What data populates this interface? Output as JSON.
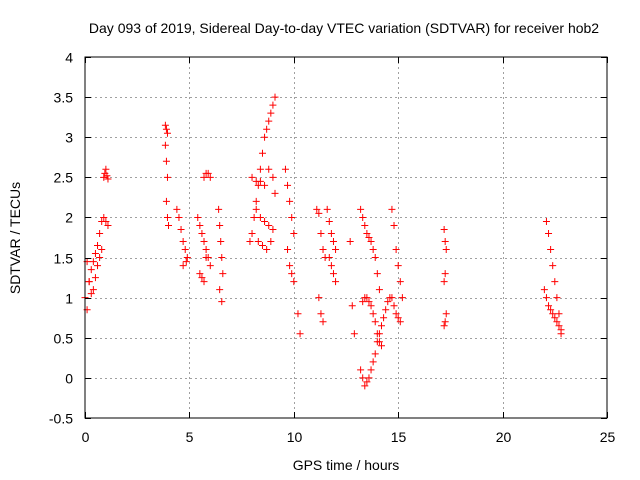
{
  "chart_data": {
    "type": "scatter",
    "title": "Day 093 of 2019, Sidereal Day-to-day VTEC variation (SDTVAR) for receiver hob2",
    "xlabel": "GPS time / hours",
    "ylabel": "SDTVAR / TECUs",
    "xlim": [
      0,
      25
    ],
    "ylim": [
      -0.5,
      4
    ],
    "xticks": [
      0,
      5,
      10,
      15,
      20,
      25
    ],
    "xtick_labels": [
      "0",
      "5",
      "10",
      "15",
      "20",
      "25"
    ],
    "yticks": [
      -0.5,
      0,
      0.5,
      1,
      1.5,
      2,
      2.5,
      3,
      3.5,
      4
    ],
    "ytick_labels": [
      "-0.5",
      "0",
      "0.5",
      "1",
      "1.5",
      "2",
      "2.5",
      "3",
      "3.5",
      "4"
    ],
    "grid": true,
    "marker": "+",
    "color": "#ff0000",
    "segments": [
      {
        "name": "s1",
        "x": [
          0.0,
          0.1,
          0.2,
          0.3,
          0.4,
          0.5,
          0.6,
          0.7,
          0.8,
          0.9,
          1.0,
          1.1
        ],
        "y": [
          1.0,
          0.85,
          1.2,
          1.35,
          1.45,
          1.55,
          1.65,
          1.8,
          1.95,
          2.0,
          1.95,
          1.9
        ]
      },
      {
        "name": "s2",
        "x": [
          0.1,
          0.2,
          0.3,
          0.4,
          0.5,
          0.6,
          0.7,
          0.8
        ],
        "y": [
          1.45,
          1.2,
          1.05,
          1.1,
          1.25,
          1.4,
          1.5,
          1.6
        ]
      },
      {
        "name": "s3",
        "x": [
          0.9,
          0.95,
          1.0,
          1.05,
          1.1
        ],
        "y": [
          2.5,
          2.55,
          2.6,
          2.52,
          2.48
        ]
      },
      {
        "name": "s4",
        "x": [
          3.85,
          3.9,
          3.95,
          3.85,
          3.9,
          3.95,
          3.9,
          3.95,
          4.0
        ],
        "y": [
          3.15,
          3.1,
          3.05,
          2.9,
          2.7,
          2.5,
          2.2,
          2.0,
          1.9
        ]
      },
      {
        "name": "s5",
        "x": [
          4.4,
          4.5,
          4.6,
          4.7,
          4.8,
          4.9,
          4.7,
          4.85
        ],
        "y": [
          2.1,
          2.0,
          1.85,
          1.7,
          1.6,
          1.5,
          1.4,
          1.45
        ]
      },
      {
        "name": "s6",
        "x": [
          5.4,
          5.5,
          5.6,
          5.7,
          5.8,
          5.9,
          6.0,
          5.5,
          5.6,
          5.7,
          5.8
        ],
        "y": [
          2.0,
          1.9,
          1.8,
          1.7,
          1.6,
          1.5,
          1.4,
          1.3,
          1.25,
          1.2,
          1.5
        ]
      },
      {
        "name": "s7",
        "x": [
          5.7,
          5.8,
          5.9,
          6.0
        ],
        "y": [
          2.5,
          2.55,
          2.55,
          2.5
        ]
      },
      {
        "name": "s8",
        "x": [
          6.4,
          6.45,
          6.5,
          6.55,
          6.6,
          6.45,
          6.55
        ],
        "y": [
          2.1,
          1.9,
          1.7,
          1.5,
          1.3,
          1.1,
          0.95
        ]
      },
      {
        "name": "s9",
        "x": [
          7.9,
          8.0,
          8.1,
          8.2,
          8.3,
          8.4,
          8.5,
          8.6,
          8.7,
          8.8,
          8.9,
          9.0,
          9.1
        ],
        "y": [
          1.7,
          1.8,
          2.0,
          2.2,
          2.4,
          2.6,
          2.8,
          3.0,
          3.1,
          3.2,
          3.3,
          3.4,
          3.5
        ]
      },
      {
        "name": "s10",
        "x": [
          8.0,
          8.2,
          8.4,
          8.6,
          8.8,
          9.0,
          9.1
        ],
        "y": [
          2.5,
          2.45,
          2.45,
          2.4,
          2.6,
          2.5,
          2.3
        ]
      },
      {
        "name": "s11",
        "x": [
          8.2,
          8.4,
          8.6,
          8.8,
          9.0,
          8.3,
          8.5,
          8.7,
          8.9
        ],
        "y": [
          2.1,
          2.0,
          1.95,
          1.9,
          1.85,
          1.7,
          1.65,
          1.6,
          1.7
        ]
      },
      {
        "name": "s12",
        "x": [
          9.6,
          9.7,
          9.8,
          9.9,
          10.0,
          9.7,
          9.8,
          9.9,
          10.0
        ],
        "y": [
          2.6,
          2.4,
          2.2,
          2.0,
          1.8,
          1.6,
          1.4,
          1.3,
          1.2
        ]
      },
      {
        "name": "s13",
        "x": [
          10.2,
          10.3
        ],
        "y": [
          0.8,
          0.55
        ]
      },
      {
        "name": "s14",
        "x": [
          11.1,
          11.2,
          11.3,
          11.4,
          11.5,
          11.2,
          11.3,
          11.4
        ],
        "y": [
          2.1,
          2.05,
          1.8,
          1.6,
          1.5,
          1.0,
          0.8,
          0.7
        ]
      },
      {
        "name": "s15",
        "x": [
          11.6,
          11.7,
          11.8,
          11.9,
          12.0,
          11.7,
          11.8,
          11.9,
          12.0
        ],
        "y": [
          2.1,
          1.95,
          1.8,
          1.7,
          1.6,
          1.5,
          1.4,
          1.3,
          1.2
        ]
      },
      {
        "name": "s16",
        "x": [
          12.7,
          12.8,
          12.9
        ],
        "y": [
          1.7,
          0.9,
          0.55
        ]
      },
      {
        "name": "s17",
        "x": [
          13.2,
          13.3,
          13.4,
          13.5,
          13.6,
          13.7,
          13.8,
          13.9,
          14.0,
          14.1
        ],
        "y": [
          2.1,
          2.0,
          1.9,
          1.8,
          1.75,
          1.7,
          1.6,
          1.5,
          1.3,
          1.1
        ]
      },
      {
        "name": "s18",
        "x": [
          13.2,
          13.3,
          13.4,
          13.5,
          13.6,
          13.7,
          13.8,
          13.9,
          14.0,
          14.1,
          14.2,
          14.3,
          14.4,
          14.5,
          14.6,
          14.7
        ],
        "y": [
          0.1,
          0.0,
          -0.1,
          -0.05,
          0.0,
          0.1,
          0.2,
          0.3,
          0.45,
          0.55,
          0.65,
          0.75,
          0.85,
          0.95,
          1.0,
          1.0
        ]
      },
      {
        "name": "s19",
        "x": [
          13.3,
          13.4,
          13.5,
          13.6,
          13.7,
          13.8,
          13.9,
          14.0,
          14.1,
          14.2
        ],
        "y": [
          0.95,
          1.0,
          1.0,
          0.95,
          0.9,
          0.8,
          0.7,
          0.55,
          0.45,
          0.4
        ]
      },
      {
        "name": "s20",
        "x": [
          14.7,
          14.8,
          14.9,
          15.0,
          15.1,
          15.2,
          14.8,
          14.9,
          15.0,
          15.1
        ],
        "y": [
          2.1,
          1.9,
          1.6,
          1.4,
          1.2,
          1.0,
          0.9,
          0.8,
          0.75,
          0.7
        ]
      },
      {
        "name": "s21",
        "x": [
          17.2,
          17.25,
          17.3,
          17.25,
          17.2,
          17.3,
          17.25,
          17.2
        ],
        "y": [
          1.85,
          1.7,
          1.6,
          1.3,
          1.2,
          0.8,
          0.7,
          0.65
        ]
      },
      {
        "name": "s22",
        "x": [
          22.1,
          22.2,
          22.3,
          22.4,
          22.5,
          22.6,
          22.7,
          22.8
        ],
        "y": [
          1.95,
          1.8,
          1.6,
          1.4,
          1.2,
          1.0,
          0.8,
          0.6
        ]
      },
      {
        "name": "s23",
        "x": [
          22.0,
          22.1,
          22.2,
          22.3,
          22.4,
          22.5,
          22.6,
          22.7,
          22.8
        ],
        "y": [
          1.1,
          1.0,
          0.9,
          0.85,
          0.8,
          0.75,
          0.7,
          0.65,
          0.55
        ]
      }
    ]
  }
}
